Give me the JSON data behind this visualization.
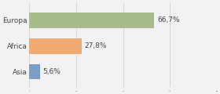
{
  "categories": [
    "Europa",
    "Africa",
    "Asia"
  ],
  "values": [
    66.7,
    27.8,
    5.6
  ],
  "labels": [
    "66,7%",
    "27,8%",
    "5,6%"
  ],
  "bar_colors": [
    "#a8bb8a",
    "#f0aa72",
    "#7b9ec4"
  ],
  "background_color": "#f2f2f2",
  "xlim": [
    0,
    100
  ],
  "bar_height": 0.6,
  "label_fontsize": 6.5,
  "category_fontsize": 6.5
}
